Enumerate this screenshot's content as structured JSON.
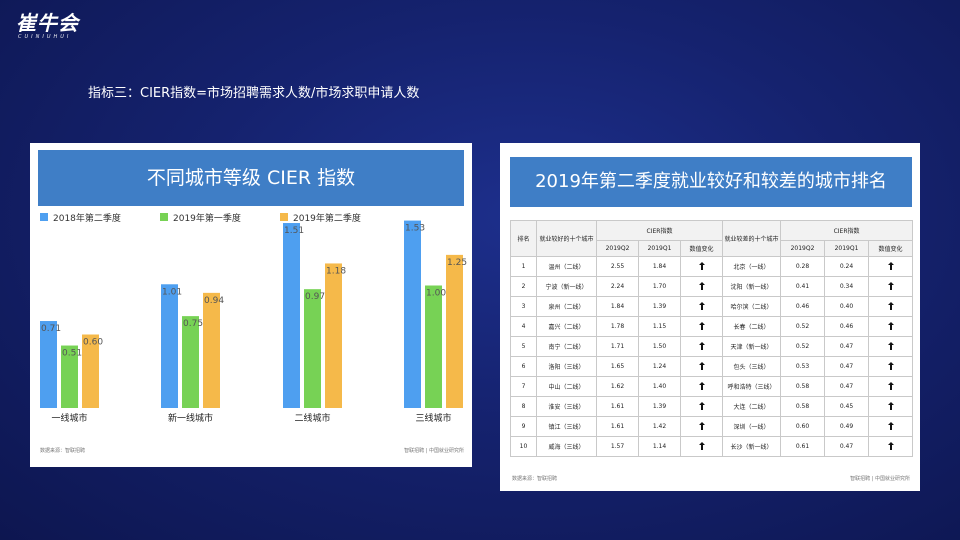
{
  "logo": {
    "main": "崔牛会",
    "sub": "CUINIUHUI"
  },
  "subtitle": "指标三：CIER指数=市场招聘需求人数/市场求职申请人数",
  "left_panel": {
    "title": "不同城市等级 CIER 指数",
    "footer_left": "数据来源：智联招聘",
    "footer_right": "智联招聘 | 中国就业研究所"
  },
  "chart_data": {
    "type": "bar",
    "title": "不同城市等级 CIER 指数",
    "categories": [
      "一线城市",
      "新一线城市",
      "二线城市",
      "三线城市"
    ],
    "series": [
      {
        "name": "2018年第二季度",
        "color": "#4e9ff0",
        "values": [
          0.71,
          1.01,
          1.51,
          1.53
        ]
      },
      {
        "name": "2019年第一季度",
        "color": "#77d255",
        "values": [
          0.51,
          0.75,
          0.97,
          1.0
        ]
      },
      {
        "name": "2019年第二季度",
        "color": "#f5b94a",
        "values": [
          0.6,
          0.94,
          1.18,
          1.25
        ]
      }
    ],
    "value_labels": [
      [
        "0.71",
        "1.01",
        "1.51",
        "1.53"
      ],
      [
        "0.51",
        "0.75",
        "0.97",
        "1.00"
      ],
      [
        "0.60",
        "0.94",
        "1.18",
        "1.25"
      ]
    ],
    "ylim": [
      0,
      1.6
    ],
    "legend_position": "top",
    "grid": false
  },
  "right_panel": {
    "title": "2019年第二季度就业较好和较差的城市排名",
    "footer_left": "数据来源：智联招聘",
    "footer_right": "智联招聘 | 中国就业研究所",
    "headers": {
      "rank": "排名",
      "good_city": "就业较好的十个城市",
      "cier_good": "CIER指数",
      "bad_city": "就业较差的十个城市",
      "cier_bad": "CIER指数",
      "q2": "2019Q2",
      "q1": "2019Q1",
      "change": "数值变化"
    },
    "rows": [
      {
        "rank": "1",
        "good": "温州（二线）",
        "g_q2": "2.55",
        "g_q1": "1.84",
        "bad": "北京（一线）",
        "b_q2": "0.28",
        "b_q1": "0.24"
      },
      {
        "rank": "2",
        "good": "宁波（新一线）",
        "g_q2": "2.24",
        "g_q1": "1.70",
        "bad": "沈阳（新一线）",
        "b_q2": "0.41",
        "b_q1": "0.34"
      },
      {
        "rank": "3",
        "good": "泉州（二线）",
        "g_q2": "1.84",
        "g_q1": "1.39",
        "bad": "哈尔滨（二线）",
        "b_q2": "0.46",
        "b_q1": "0.40"
      },
      {
        "rank": "4",
        "good": "嘉兴（二线）",
        "g_q2": "1.78",
        "g_q1": "1.15",
        "bad": "长春（二线）",
        "b_q2": "0.52",
        "b_q1": "0.46"
      },
      {
        "rank": "5",
        "good": "南宁（二线）",
        "g_q2": "1.71",
        "g_q1": "1.50",
        "bad": "天津（新一线）",
        "b_q2": "0.52",
        "b_q1": "0.47"
      },
      {
        "rank": "6",
        "good": "洛阳（三线）",
        "g_q2": "1.65",
        "g_q1": "1.24",
        "bad": "包头（三线）",
        "b_q2": "0.53",
        "b_q1": "0.47"
      },
      {
        "rank": "7",
        "good": "中山（二线）",
        "g_q2": "1.62",
        "g_q1": "1.40",
        "bad": "呼和浩特（三线）",
        "b_q2": "0.58",
        "b_q1": "0.47"
      },
      {
        "rank": "8",
        "good": "淮安（三线）",
        "g_q2": "1.61",
        "g_q1": "1.39",
        "bad": "大连（二线）",
        "b_q2": "0.58",
        "b_q1": "0.45"
      },
      {
        "rank": "9",
        "good": "镇江（三线）",
        "g_q2": "1.61",
        "g_q1": "1.42",
        "bad": "深圳（一线）",
        "b_q2": "0.60",
        "b_q1": "0.49"
      },
      {
        "rank": "10",
        "good": "威海（三线）",
        "g_q2": "1.57",
        "g_q1": "1.14",
        "bad": "长沙（新一线）",
        "b_q2": "0.61",
        "b_q1": "0.47"
      }
    ]
  }
}
